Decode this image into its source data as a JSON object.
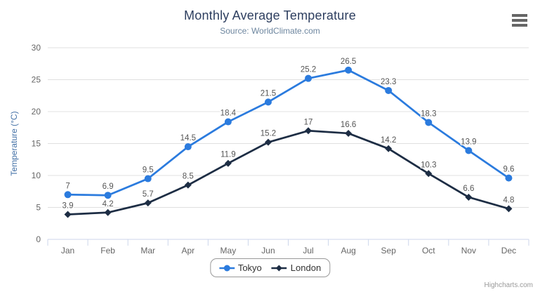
{
  "chart_data": {
    "type": "line",
    "title": "Monthly Average Temperature",
    "subtitle": "Source: WorldClimate.com",
    "categories": [
      "Jan",
      "Feb",
      "Mar",
      "Apr",
      "May",
      "Jun",
      "Jul",
      "Aug",
      "Sep",
      "Oct",
      "Nov",
      "Dec"
    ],
    "series": [
      {
        "name": "Tokyo",
        "color": "#2b7bde",
        "marker": "circle",
        "values": [
          7,
          6.9,
          9.5,
          14.5,
          18.4,
          21.5,
          25.2,
          26.5,
          23.3,
          18.3,
          13.9,
          9.6
        ]
      },
      {
        "name": "London",
        "color": "#1d2d44",
        "marker": "diamond",
        "values": [
          3.9,
          4.2,
          5.7,
          8.5,
          11.9,
          15.2,
          17,
          16.6,
          14.2,
          10.3,
          6.6,
          4.8
        ]
      }
    ],
    "xlabel": "",
    "ylabel": "Temperature (°C)",
    "ylim": [
      0,
      30
    ],
    "ytick_interval": 5,
    "grid": true,
    "legend_position": "bottom"
  },
  "colors": {
    "grid_line": "#e0e0e0",
    "axis_line": "#ccd6eb",
    "tick_label": "#666666",
    "data_label": "#555555",
    "y_axis_title": "#4572a7",
    "title": "#2d3e5f",
    "subtitle": "#6d869f"
  },
  "export_menu": {
    "icon": "hamburger-menu"
  },
  "credit": {
    "label": "Highcharts.com"
  }
}
